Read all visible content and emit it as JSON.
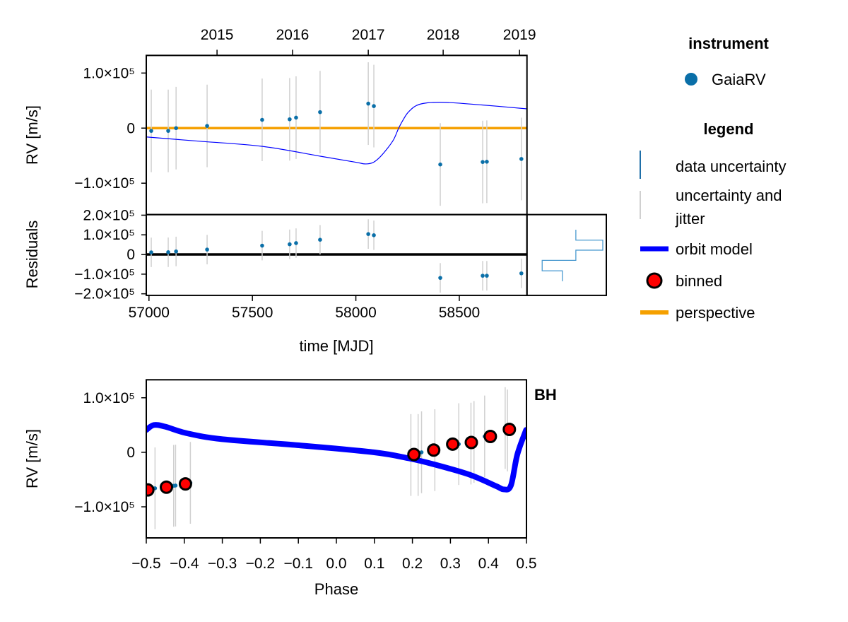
{
  "colors": {
    "data_point": "#0a6fa8",
    "data_uncertainty": "#1f6fa8",
    "jitter": "#d0d0d0",
    "orbit_model": "#0000ff",
    "binned_fill": "#ff0000",
    "binned_edge": "#000000",
    "perspective": "#f5a000",
    "histogram": "#4a9ad0"
  },
  "legend": {
    "instrument_title": "instrument",
    "instrument_items": [
      {
        "label": "GaiaRV",
        "icon": "circle-marker"
      }
    ],
    "legend_title": "legend",
    "items": [
      {
        "label": "data uncertainty",
        "icon": "vertical-line-blue"
      },
      {
        "label_line1": "uncertainty and",
        "label_line2": "jitter",
        "icon": "vertical-line-gray"
      },
      {
        "label": "orbit model",
        "icon": "thick-line-blue"
      },
      {
        "label": "binned",
        "icon": "red-circle-marker"
      },
      {
        "label": "perspective",
        "icon": "thick-line-orange"
      }
    ]
  },
  "chart_data": [
    {
      "panel": "rv-vs-time",
      "type": "scatter",
      "ylabel": "RV [m/s]",
      "xlim": [
        56987,
        58827
      ],
      "ylim": [
        -157000,
        132000
      ],
      "yticks": [
        {
          "value": 100000,
          "label": "1.0×10⁵"
        },
        {
          "value": 0,
          "label": "0"
        },
        {
          "value": -100000,
          "label": "−1.0×10⁵"
        }
      ],
      "top_axis_ticks": [
        {
          "label": "2015",
          "mjd": 57329
        },
        {
          "label": "2016",
          "mjd": 57694
        },
        {
          "label": "2017",
          "mjd": 58060
        },
        {
          "label": "2018",
          "mjd": 58422
        },
        {
          "label": "2019",
          "mjd": 58791
        }
      ],
      "jitter_uncertainty": 75000,
      "data_uncertainty": 1000,
      "points": [
        {
          "mjd": 57011,
          "rv": -5000,
          "residual": 11000
        },
        {
          "mjd": 57093,
          "rv": -5000,
          "residual": 11500
        },
        {
          "mjd": 57131,
          "rv": 0,
          "residual": 15600
        },
        {
          "mjd": 57281,
          "rv": 4000,
          "residual": 25000
        },
        {
          "mjd": 57547,
          "rv": 15000,
          "residual": 45000
        },
        {
          "mjd": 57680,
          "rv": 16000,
          "residual": 52000
        },
        {
          "mjd": 57711,
          "rv": 19000,
          "residual": 58000
        },
        {
          "mjd": 57827,
          "rv": 29000,
          "residual": 75000
        },
        {
          "mjd": 58060,
          "rv": 44500,
          "residual": 104000
        },
        {
          "mjd": 58087,
          "rv": 40000,
          "residual": 98000
        },
        {
          "mjd": 58408,
          "rv": -66000,
          "residual": -119000
        },
        {
          "mjd": 58613,
          "rv": -61500,
          "residual": -108000
        },
        {
          "mjd": 58633,
          "rv": -61000,
          "residual": -108000
        },
        {
          "mjd": 58800,
          "rv": -56000,
          "residual": -96000
        }
      ],
      "orbit_model": [
        [
          56985,
          -16000
        ],
        [
          57250,
          -24000
        ],
        [
          57546,
          -33000
        ],
        [
          57828,
          -51000
        ],
        [
          58000,
          -62000
        ],
        [
          58043,
          -65000
        ],
        [
          58080,
          -63000
        ],
        [
          58110,
          -55000
        ],
        [
          58150,
          -38000
        ],
        [
          58183,
          -20500
        ],
        [
          58207,
          0
        ],
        [
          58230,
          16000
        ],
        [
          58256,
          30000
        ],
        [
          58306,
          43000
        ],
        [
          58408,
          47000
        ],
        [
          58610,
          42000
        ],
        [
          58827,
          35000
        ]
      ],
      "perspective_value": 0
    },
    {
      "panel": "residuals",
      "type": "scatter",
      "ylabel": "Residuals",
      "xlabel": "time [MJD]",
      "xlim": [
        56987,
        58827
      ],
      "ylim": [
        -208000,
        203000
      ],
      "xticks": [
        {
          "value": 57000,
          "label": "57000"
        },
        {
          "value": 57500,
          "label": "57500"
        },
        {
          "value": 58000,
          "label": "58000"
        },
        {
          "value": 58500,
          "label": "58500"
        }
      ],
      "yticks": [
        {
          "value": 200000,
          "label": "2.0×10⁵"
        },
        {
          "value": 100000,
          "label": "1.0×10⁵"
        },
        {
          "value": 0,
          "label": "0"
        },
        {
          "value": -100000,
          "label": "−1.0×10⁵"
        },
        {
          "value": -200000,
          "label": "−2.0×10⁵"
        }
      ],
      "histogram": {
        "type": "step",
        "bin_edges": [
          126000,
          73000,
          22000,
          -30000,
          -83000,
          -136000
        ],
        "relative_heights": [
          0.6,
          1.0,
          0.6,
          0.1,
          0.4
        ]
      }
    },
    {
      "panel": "rv-vs-phase",
      "type": "scatter",
      "title": "BH",
      "xlabel": "Phase",
      "ylabel": "RV [m/s]",
      "xlim": [
        -0.5,
        0.5
      ],
      "ylim": [
        -157000,
        133000
      ],
      "xticks": [
        {
          "value": -0.5,
          "label": "−0.5"
        },
        {
          "value": -0.4,
          "label": "−0.4"
        },
        {
          "value": -0.3,
          "label": "−0.3"
        },
        {
          "value": -0.2,
          "label": "−0.2"
        },
        {
          "value": -0.1,
          "label": "−0.1"
        },
        {
          "value": 0,
          "label": "0.0"
        },
        {
          "value": 0.1,
          "label": "0.1"
        },
        {
          "value": 0.2,
          "label": "0.2"
        },
        {
          "value": 0.3,
          "label": "0.3"
        },
        {
          "value": 0.4,
          "label": "0.4"
        },
        {
          "value": 0.5,
          "label": "0.5"
        }
      ],
      "yticks": [
        {
          "value": 100000,
          "label": "1.0×10⁵"
        },
        {
          "value": 0,
          "label": "0"
        },
        {
          "value": -100000,
          "label": "−1.0×10⁵"
        }
      ],
      "points": [
        {
          "phase": -0.477,
          "rv": -66000
        },
        {
          "phase": -0.428,
          "rv": -61500
        },
        {
          "phase": -0.423,
          "rv": -61000
        },
        {
          "phase": -0.384,
          "rv": -56000
        },
        {
          "phase": 0.196,
          "rv": -5000
        },
        {
          "phase": 0.215,
          "rv": -5000
        },
        {
          "phase": 0.224,
          "rv": 0
        },
        {
          "phase": 0.259,
          "rv": 4000
        },
        {
          "phase": 0.322,
          "rv": 15000
        },
        {
          "phase": 0.354,
          "rv": 16000
        },
        {
          "phase": 0.362,
          "rv": 19000
        },
        {
          "phase": 0.39,
          "rv": 29000
        },
        {
          "phase": 0.444,
          "rv": 44500
        },
        {
          "phase": 0.45,
          "rv": 40000
        }
      ],
      "binned": [
        {
          "phase": -0.496,
          "rv": -69000
        },
        {
          "phase": -0.447,
          "rv": -64000
        },
        {
          "phase": -0.397,
          "rv": -58000
        },
        {
          "phase": 0.204,
          "rv": -4000
        },
        {
          "phase": 0.256,
          "rv": 4000
        },
        {
          "phase": 0.306,
          "rv": 15000
        },
        {
          "phase": 0.355,
          "rv": 18000
        },
        {
          "phase": 0.405,
          "rv": 29000
        },
        {
          "phase": 0.455,
          "rv": 42000
        }
      ],
      "orbit_model": [
        [
          -0.5,
          41000
        ],
        [
          -0.48,
          50000
        ],
        [
          -0.45,
          47000
        ],
        [
          -0.394,
          35000
        ],
        [
          -0.3,
          24000
        ],
        [
          -0.102,
          13000
        ],
        [
          0.098,
          0
        ],
        [
          0.19,
          -11000
        ],
        [
          0.256,
          -22000
        ],
        [
          0.35,
          -41000
        ],
        [
          0.42,
          -62000
        ],
        [
          0.44,
          -68000
        ],
        [
          0.459,
          -61000
        ],
        [
          0.476,
          -4000
        ],
        [
          0.499,
          41000
        ]
      ]
    }
  ]
}
